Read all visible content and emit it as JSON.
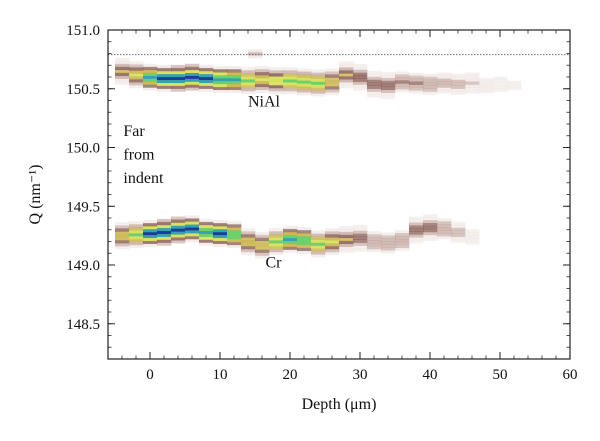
{
  "chart_data": {
    "type": "heatmap",
    "xlabel": "Depth (μm)",
    "ylabel": "Q (nm⁻¹)",
    "xlim": [
      -6,
      60
    ],
    "ylim": [
      148.2,
      151.0
    ],
    "xticks": [
      0,
      10,
      20,
      30,
      40,
      50,
      60
    ],
    "yticks": [
      148.5,
      149.0,
      149.5,
      150.0,
      150.5,
      151.0
    ],
    "xtick_labels": [
      "0",
      "10",
      "20",
      "30",
      "40",
      "50",
      "60"
    ],
    "ytick_labels": [
      "148.5",
      "149.0",
      "149.5",
      "150.0",
      "150.5",
      "151.0"
    ],
    "reference_line_q": 150.79,
    "annotations": [
      {
        "text": "NiAl",
        "x": 14.0,
        "y": 150.35
      },
      {
        "text": "Far",
        "x": -3.8,
        "y": 150.1
      },
      {
        "text": "from",
        "x": -3.8,
        "y": 149.9
      },
      {
        "text": "indent",
        "x": -3.8,
        "y": 149.7
      },
      {
        "text": "Cr",
        "x": 16.5,
        "y": 148.98
      }
    ],
    "series": [
      {
        "band": "NiAl",
        "ridge": [
          {
            "x": -4,
            "q": 150.65
          },
          {
            "x": -2,
            "q": 150.62
          },
          {
            "x": 0,
            "q": 150.6
          },
          {
            "x": 2,
            "q": 150.59
          },
          {
            "x": 4,
            "q": 150.59
          },
          {
            "x": 6,
            "q": 150.6
          },
          {
            "x": 8,
            "q": 150.59
          },
          {
            "x": 10,
            "q": 150.58
          },
          {
            "x": 12,
            "q": 150.58
          },
          {
            "x": 14,
            "q": 150.57
          },
          {
            "x": 16,
            "q": 150.58
          },
          {
            "x": 18,
            "q": 150.57
          },
          {
            "x": 20,
            "q": 150.57
          },
          {
            "x": 22,
            "q": 150.56
          },
          {
            "x": 24,
            "q": 150.55
          },
          {
            "x": 26,
            "q": 150.56
          },
          {
            "x": 28,
            "q": 150.62
          },
          {
            "x": 30,
            "q": 150.6
          },
          {
            "x": 32,
            "q": 150.54
          },
          {
            "x": 34,
            "q": 150.53
          },
          {
            "x": 36,
            "q": 150.56
          },
          {
            "x": 38,
            "q": 150.55
          },
          {
            "x": 40,
            "q": 150.54
          },
          {
            "x": 42,
            "q": 150.55
          },
          {
            "x": 44,
            "q": 150.54
          },
          {
            "x": 46,
            "q": 150.55
          },
          {
            "x": 48,
            "q": 150.53
          },
          {
            "x": 50,
            "q": 150.54
          },
          {
            "x": 52,
            "q": 150.53
          }
        ],
        "intensity": [
          0.45,
          0.6,
          0.85,
          0.95,
          1.0,
          1.0,
          0.95,
          0.9,
          0.85,
          0.7,
          0.6,
          0.65,
          0.7,
          0.75,
          0.7,
          0.5,
          0.45,
          0.4,
          0.35,
          0.35,
          0.32,
          0.32,
          0.3,
          0.28,
          0.25,
          0.2,
          0.15,
          0.1,
          0.08
        ]
      },
      {
        "band": "Cr",
        "ridge": [
          {
            "x": -4,
            "q": 149.25
          },
          {
            "x": -2,
            "q": 149.26
          },
          {
            "x": 0,
            "q": 149.27
          },
          {
            "x": 2,
            "q": 149.28
          },
          {
            "x": 4,
            "q": 149.3
          },
          {
            "x": 6,
            "q": 149.31
          },
          {
            "x": 8,
            "q": 149.28
          },
          {
            "x": 10,
            "q": 149.27
          },
          {
            "x": 12,
            "q": 149.26
          },
          {
            "x": 14,
            "q": 149.2
          },
          {
            "x": 16,
            "q": 149.17
          },
          {
            "x": 18,
            "q": 149.2
          },
          {
            "x": 20,
            "q": 149.22
          },
          {
            "x": 22,
            "q": 149.21
          },
          {
            "x": 24,
            "q": 149.18
          },
          {
            "x": 26,
            "q": 149.2
          },
          {
            "x": 28,
            "q": 149.22
          },
          {
            "x": 30,
            "q": 149.23
          },
          {
            "x": 32,
            "q": 149.2
          },
          {
            "x": 34,
            "q": 149.19
          },
          {
            "x": 36,
            "q": 149.21
          },
          {
            "x": 38,
            "q": 149.3
          },
          {
            "x": 40,
            "q": 149.32
          },
          {
            "x": 42,
            "q": 149.31
          },
          {
            "x": 44,
            "q": 149.28
          },
          {
            "x": 46,
            "q": 149.24
          }
        ],
        "intensity": [
          0.55,
          0.75,
          0.95,
          1.0,
          1.0,
          0.95,
          0.9,
          0.95,
          0.8,
          0.55,
          0.5,
          0.7,
          0.85,
          0.8,
          0.7,
          0.6,
          0.45,
          0.35,
          0.3,
          0.3,
          0.3,
          0.35,
          0.35,
          0.3,
          0.22,
          0.12
        ]
      }
    ],
    "extra_spots": [
      {
        "x": 15.0,
        "q": 150.8,
        "intensity": 0.3
      }
    ],
    "colormap": [
      "#ffffff",
      "#e8dcd8",
      "#b8958d",
      "#7a4a40",
      "#c9b44a",
      "#d8e060",
      "#6ed06a",
      "#3aa0b0",
      "#1a3d9a"
    ]
  }
}
